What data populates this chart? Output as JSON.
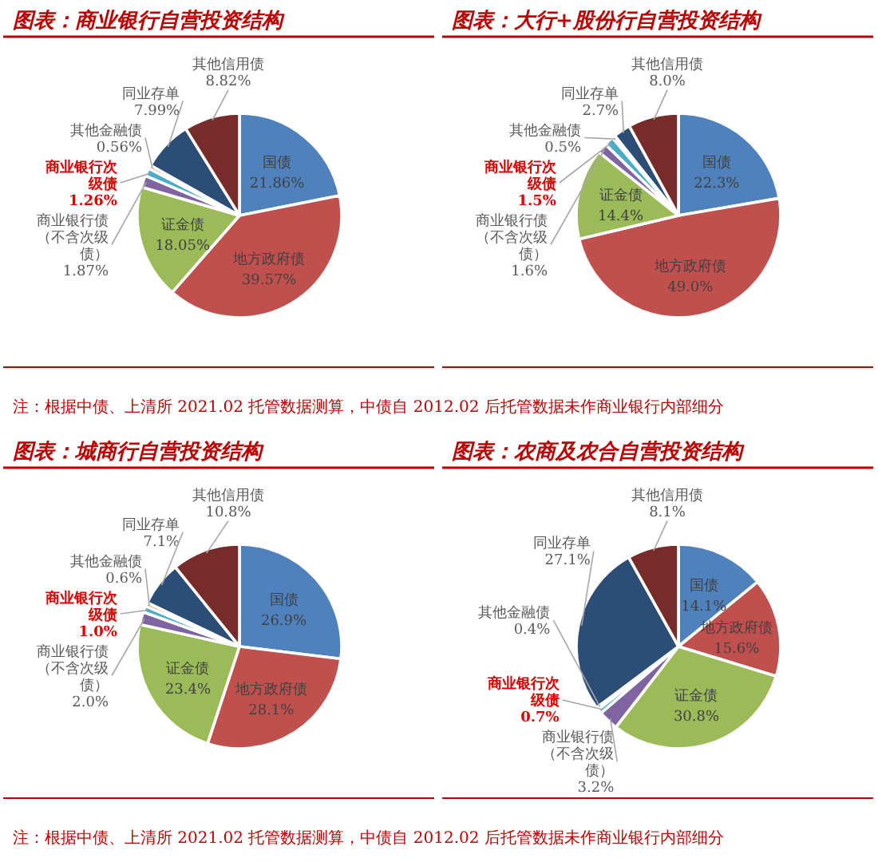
{
  "chart_data": [
    {
      "type": "pie",
      "title": "图表：商业银行自营投资结构",
      "categories": [
        "国债",
        "地方政府债",
        "证金债",
        "商业银行债（不含次级债）",
        "商业银行次级债",
        "其他金融债",
        "同业存单",
        "其他信用债"
      ],
      "values": [
        21.86,
        39.57,
        18.05,
        1.87,
        1.26,
        0.56,
        7.99,
        8.82
      ],
      "value_labels": [
        "21.86%",
        "39.57%",
        "18.05%",
        "1.87%",
        "1.26%",
        "0.56%",
        "7.99%",
        "8.82%"
      ],
      "colors": [
        "#4f81bd",
        "#c0504d",
        "#9bbb59",
        "#8064a2",
        "#4bacc6",
        "#f79646",
        "#2c4d75",
        "#772c2a"
      ],
      "annotations": [
        "注：根据中债、上清所 2021.02 托管数据测算，中债自 2012.02 后托管数据未作商业银行内部细分"
      ]
    },
    {
      "type": "pie",
      "title": "图表：大行+股份行自营投资结构",
      "categories": [
        "国债",
        "地方政府债",
        "证金债",
        "商业银行债（不含次级债）",
        "商业银行次级债",
        "其他金融债",
        "同业存单",
        "其他信用债"
      ],
      "values": [
        22.3,
        49.0,
        14.4,
        1.6,
        1.5,
        0.5,
        2.7,
        8.0
      ],
      "value_labels": [
        "22.3%",
        "49.0%",
        "14.4%",
        "1.6%",
        "1.5%",
        "0.5%",
        "2.7%",
        "8.0%"
      ],
      "colors": [
        "#4f81bd",
        "#c0504d",
        "#9bbb59",
        "#8064a2",
        "#4bacc6",
        "#f79646",
        "#2c4d75",
        "#772c2a"
      ]
    },
    {
      "type": "pie",
      "title": "图表：城商行自营投资结构",
      "categories": [
        "国债",
        "地方政府债",
        "证金债",
        "商业银行债（不含次级债）",
        "商业银行次级债",
        "其他金融债",
        "同业存单",
        "其他信用债"
      ],
      "values": [
        26.9,
        28.1,
        23.4,
        2.0,
        1.0,
        0.6,
        7.1,
        10.8
      ],
      "value_labels": [
        "26.9%",
        "28.1%",
        "23.4%",
        "2.0%",
        "1.0%",
        "0.6%",
        "7.1%",
        "10.8%"
      ],
      "colors": [
        "#4f81bd",
        "#c0504d",
        "#9bbb59",
        "#8064a2",
        "#4bacc6",
        "#f79646",
        "#2c4d75",
        "#772c2a"
      ],
      "annotations": [
        "注：根据中债、上清所 2021.02 托管数据测算，中债自 2012.02 后托管数据未作商业银行内部细分"
      ]
    },
    {
      "type": "pie",
      "title": "图表：农商及农合自营投资结构",
      "categories": [
        "国债",
        "地方政府债",
        "证金债",
        "商业银行债（不含次级债）",
        "商业银行次级债",
        "其他金融债",
        "同业存单",
        "其他信用债"
      ],
      "values": [
        14.1,
        15.6,
        30.8,
        3.2,
        0.7,
        0.4,
        27.1,
        8.1
      ],
      "value_labels": [
        "14.1%",
        "15.6%",
        "30.8%",
        "3.2%",
        "0.7%",
        "0.4%",
        "27.1%",
        "8.1%"
      ],
      "colors": [
        "#4f81bd",
        "#c0504d",
        "#9bbb59",
        "#8064a2",
        "#4bacc6",
        "#f79646",
        "#2c4d75",
        "#772c2a"
      ]
    }
  ]
}
